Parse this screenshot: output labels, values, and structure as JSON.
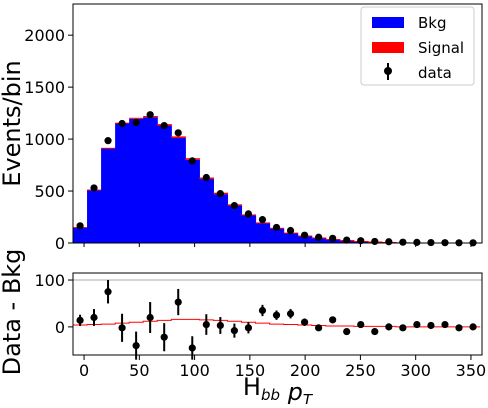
{
  "chart_data": [
    {
      "type": "bar",
      "xlabel": "",
      "ylabel": "Events/bin",
      "xlim": [
        -10,
        360
      ],
      "ylim": [
        0,
        2300
      ],
      "yticks": [
        0,
        500,
        1000,
        1500,
        2000
      ],
      "bin_edges": [
        -10,
        2.7,
        15.4,
        28.1,
        40.8,
        53.5,
        66.2,
        78.9,
        91.6,
        104.3,
        117,
        129.7,
        142.4,
        155.1,
        167.8,
        180.5,
        193.2,
        205.9,
        218.6,
        231.3,
        244,
        256.7,
        269.4,
        282.1,
        294.8,
        307.5,
        320.2,
        332.9,
        345.6,
        358.3
      ],
      "series": [
        {
          "name": "Bkg",
          "color": "#0000ff",
          "values": [
            150,
            510,
            910,
            1150,
            1195,
            1210,
            1130,
            1010,
            800,
            615,
            470,
            360,
            265,
            190,
            140,
            95,
            68,
            50,
            36,
            26,
            18,
            13,
            9,
            6,
            5,
            3,
            2,
            1,
            1
          ]
        },
        {
          "name": "Signal",
          "color": "#ff0000",
          "values": [
            3,
            4,
            6,
            8,
            10,
            12,
            14,
            16,
            16,
            15,
            14,
            12,
            10,
            8,
            6,
            5,
            4,
            3,
            2,
            2,
            1,
            1,
            1,
            0,
            0,
            0,
            0,
            0,
            0
          ]
        },
        {
          "name": "data",
          "color": "#000000",
          "x": [
            -3.6,
            9,
            21.7,
            34.4,
            47.1,
            59.8,
            72.5,
            85.2,
            97.9,
            110.6,
            123.3,
            136,
            148.7,
            161.4,
            174.1,
            186.8,
            199.5,
            212.2,
            224.9,
            237.6,
            250.3,
            263,
            275.7,
            288.4,
            301.1,
            313.8,
            326.5,
            339.2,
            351.9
          ],
          "values": [
            165,
            530,
            985,
            1150,
            1160,
            1235,
            1130,
            1060,
            790,
            630,
            475,
            360,
            280,
            225,
            150,
            120,
            75,
            55,
            45,
            28,
            22,
            15,
            12,
            8,
            6,
            4,
            3,
            2,
            2
          ]
        }
      ],
      "legend": "top-right"
    },
    {
      "type": "scatter",
      "xlabel": "H_bb p_T",
      "ylabel": "Data - Bkg",
      "xlim": [
        -10,
        360
      ],
      "ylim": [
        -60,
        115
      ],
      "xticks": [
        0,
        50,
        100,
        150,
        200,
        250,
        300,
        350
      ],
      "yticks": [
        0,
        100
      ],
      "reference_line": 100,
      "points": [
        {
          "x": -3.6,
          "y": 14,
          "err": 12
        },
        {
          "x": 9,
          "y": 20,
          "err": 18
        },
        {
          "x": 21.7,
          "y": 75,
          "err": 25
        },
        {
          "x": 34.4,
          "y": -2,
          "err": 30
        },
        {
          "x": 47.1,
          "y": -40,
          "err": 30
        },
        {
          "x": 59.8,
          "y": 20,
          "err": 33
        },
        {
          "x": 72.5,
          "y": -22,
          "err": 30
        },
        {
          "x": 85.2,
          "y": 53,
          "err": 28
        },
        {
          "x": 97.9,
          "y": -45,
          "err": 25
        },
        {
          "x": 110.6,
          "y": 5,
          "err": 22
        },
        {
          "x": 123.3,
          "y": 3,
          "err": 18
        },
        {
          "x": 136,
          "y": -8,
          "err": 15
        },
        {
          "x": 148.7,
          "y": -2,
          "err": 12
        },
        {
          "x": 161.4,
          "y": 35,
          "err": 12
        },
        {
          "x": 174.1,
          "y": 25,
          "err": 10
        },
        {
          "x": 186.8,
          "y": 28,
          "err": 10
        },
        {
          "x": 199.5,
          "y": 10,
          "err": 8
        },
        {
          "x": 212.2,
          "y": -2,
          "err": 6
        },
        {
          "x": 224.9,
          "y": 15,
          "err": 5
        },
        {
          "x": 237.6,
          "y": -10,
          "err": 4
        },
        {
          "x": 250.3,
          "y": 5,
          "err": 4
        },
        {
          "x": 263,
          "y": -10,
          "err": 3
        },
        {
          "x": 275.7,
          "y": 0,
          "err": 3
        },
        {
          "x": 288.4,
          "y": -2,
          "err": 3
        },
        {
          "x": 301.1,
          "y": 5,
          "err": 2
        },
        {
          "x": 313.8,
          "y": 3,
          "err": 2
        },
        {
          "x": 326.5,
          "y": 5,
          "err": 2
        },
        {
          "x": 339.2,
          "y": -2,
          "err": 2
        },
        {
          "x": 351.9,
          "y": 0,
          "err": 2
        }
      ],
      "signal_curve": {
        "color": "#ff0000",
        "y": [
          4,
          5,
          6,
          8,
          10,
          12,
          14,
          16,
          16,
          15,
          14,
          12,
          10,
          8,
          6,
          5,
          4,
          3,
          2,
          2,
          1,
          1,
          1,
          0,
          0,
          0,
          0,
          0,
          0
        ]
      }
    }
  ]
}
